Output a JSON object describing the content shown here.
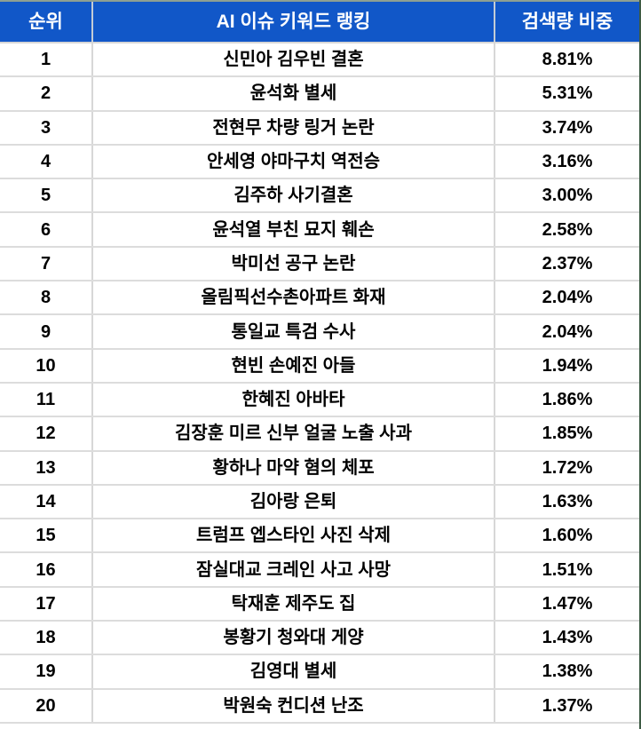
{
  "colors": {
    "header_bg": "#1157C8",
    "header_text": "#FFFFFF",
    "body_text": "#000000",
    "grid_line": "#D7D7D7",
    "top_border": "#8E9F92",
    "right_border": "#3E5B45"
  },
  "table": {
    "columns": [
      {
        "label": "순위"
      },
      {
        "label": "AI 이슈 키워드 랭킹"
      },
      {
        "label": "검색량 비중"
      }
    ],
    "rows": [
      {
        "rank": "1",
        "keyword": "신민아 김우빈 결혼",
        "share": "8.81%"
      },
      {
        "rank": "2",
        "keyword": "윤석화 별세",
        "share": "5.31%"
      },
      {
        "rank": "3",
        "keyword": "전현무 차량 링거 논란",
        "share": "3.74%"
      },
      {
        "rank": "4",
        "keyword": "안세영 야마구치 역전승",
        "share": "3.16%"
      },
      {
        "rank": "5",
        "keyword": "김주하 사기결혼",
        "share": "3.00%"
      },
      {
        "rank": "6",
        "keyword": "윤석열 부친 묘지 훼손",
        "share": "2.58%"
      },
      {
        "rank": "7",
        "keyword": "박미선 공구 논란",
        "share": "2.37%"
      },
      {
        "rank": "8",
        "keyword": "올림픽선수촌아파트 화재",
        "share": "2.04%"
      },
      {
        "rank": "9",
        "keyword": "통일교 특검 수사",
        "share": "2.04%"
      },
      {
        "rank": "10",
        "keyword": "현빈 손예진 아들",
        "share": "1.94%"
      },
      {
        "rank": "11",
        "keyword": "한혜진 아바타",
        "share": "1.86%"
      },
      {
        "rank": "12",
        "keyword": "김장훈 미르 신부 얼굴 노출 사과",
        "share": "1.85%"
      },
      {
        "rank": "13",
        "keyword": "황하나 마약 혐의 체포",
        "share": "1.72%"
      },
      {
        "rank": "14",
        "keyword": "김아랑 은퇴",
        "share": "1.63%"
      },
      {
        "rank": "15",
        "keyword": "트럼프 엡스타인 사진 삭제",
        "share": "1.60%"
      },
      {
        "rank": "16",
        "keyword": "잠실대교 크레인 사고 사망",
        "share": "1.51%"
      },
      {
        "rank": "17",
        "keyword": "탁재훈 제주도 집",
        "share": "1.47%"
      },
      {
        "rank": "18",
        "keyword": "봉황기 청와대 게양",
        "share": "1.43%"
      },
      {
        "rank": "19",
        "keyword": "김영대 별세",
        "share": "1.38%"
      },
      {
        "rank": "20",
        "keyword": "박원숙 컨디션 난조",
        "share": "1.37%"
      }
    ]
  },
  "chart_data": {
    "type": "table",
    "title": "AI 이슈 키워드 랭킹",
    "columns": [
      "순위",
      "AI 이슈 키워드 랭킹",
      "검색량 비중"
    ],
    "rows": [
      [
        1,
        "신민아 김우빈 결혼",
        "8.81%"
      ],
      [
        2,
        "윤석화 별세",
        "5.31%"
      ],
      [
        3,
        "전현무 차량 링거 논란",
        "3.74%"
      ],
      [
        4,
        "안세영 야마구치 역전승",
        "3.16%"
      ],
      [
        5,
        "김주하 사기결혼",
        "3.00%"
      ],
      [
        6,
        "윤석열 부친 묘지 훼손",
        "2.58%"
      ],
      [
        7,
        "박미선 공구 논란",
        "2.37%"
      ],
      [
        8,
        "올림픽선수촌아파트 화재",
        "2.04%"
      ],
      [
        9,
        "통일교 특검 수사",
        "2.04%"
      ],
      [
        10,
        "현빈 손예진 아들",
        "1.94%"
      ],
      [
        11,
        "한혜진 아바타",
        "1.86%"
      ],
      [
        12,
        "김장훈 미르 신부 얼굴 노출 사과",
        "1.85%"
      ],
      [
        13,
        "황하나 마약 혐의 체포",
        "1.72%"
      ],
      [
        14,
        "김아랑 은퇴",
        "1.63%"
      ],
      [
        15,
        "트럼프 엡스타인 사진 삭제",
        "1.60%"
      ],
      [
        16,
        "잠실대교 크레인 사고 사망",
        "1.51%"
      ],
      [
        17,
        "탁재훈 제주도 집",
        "1.47%"
      ],
      [
        18,
        "봉황기 청와대 게양",
        "1.43%"
      ],
      [
        19,
        "김영대 별세",
        "1.38%"
      ],
      [
        20,
        "박원숙 컨디션 난조",
        "1.37%"
      ]
    ],
    "share_values_percent": [
      8.81,
      5.31,
      3.74,
      3.16,
      3.0,
      2.58,
      2.37,
      2.04,
      2.04,
      1.94,
      1.86,
      1.85,
      1.72,
      1.63,
      1.6,
      1.51,
      1.47,
      1.43,
      1.38,
      1.37
    ]
  }
}
